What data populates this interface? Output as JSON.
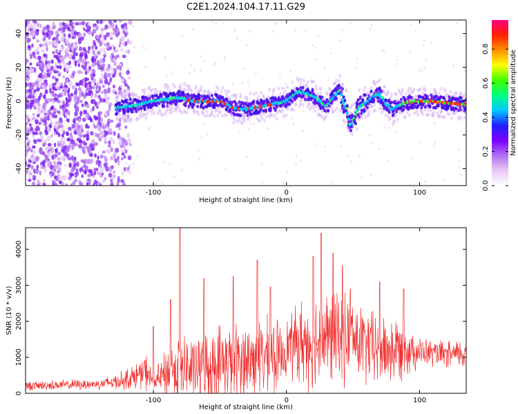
{
  "title": "C2E1.2024.104.17.11.G29",
  "chart_data": [
    {
      "type": "heatmap",
      "xlabel": "Height of straight line (km)",
      "ylabel": "Frequency (Hz)",
      "xlim": [
        -196,
        135
      ],
      "ylim": [
        -50,
        48
      ],
      "x_ticks": [
        -100,
        0,
        100
      ],
      "y_ticks": [
        -40,
        -20,
        0,
        20,
        40
      ],
      "grid": false,
      "colorbar": {
        "label": "Normalized spectral amplitude",
        "range": [
          0.0,
          0.97
        ],
        "ticks": [
          0.0,
          0.2,
          0.4,
          0.6,
          0.8
        ],
        "colormap": [
          "#ffffff",
          "#e8c8f5",
          "#b070f0",
          "#7a00ff",
          "#2020ff",
          "#00c8ff",
          "#00ff80",
          "#40ff00",
          "#ffff00",
          "#ff9000",
          "#ff2000",
          "#ff0080"
        ]
      },
      "ridge": {
        "x": [
          -128,
          -120,
          -110,
          -100,
          -90,
          -80,
          -70,
          -60,
          -50,
          -40,
          -30,
          -20,
          -10,
          0,
          10,
          20,
          30,
          35,
          40,
          45,
          48,
          52,
          55,
          60,
          65,
          70,
          75,
          80,
          85,
          90,
          100,
          110,
          120,
          135
        ],
        "freq": [
          -4,
          -3,
          -2,
          0,
          1,
          2,
          0,
          0,
          0,
          -4,
          -5,
          -3,
          -2,
          0,
          6,
          3,
          -3,
          2,
          6,
          -5,
          -15,
          -8,
          -3,
          -1,
          3,
          4,
          -2,
          -5,
          -2,
          -1,
          0,
          0,
          -1,
          -2
        ]
      },
      "noise_region_x": [
        -196,
        -125
      ]
    },
    {
      "type": "line",
      "xlabel": "Height of straight line (km)",
      "ylabel": "SNR (10 * v/v)",
      "xlim": [
        -196,
        135
      ],
      "ylim": [
        0,
        4600
      ],
      "x_ticks": [
        -100,
        0,
        100
      ],
      "y_ticks": [
        0,
        1000,
        2000,
        3000,
        4000
      ],
      "grid": false,
      "line_color": "#f03030",
      "series": [
        {
          "x": [
            -196,
            -180,
            -160,
            -140,
            -125,
            -115,
            -105,
            -100,
            -90,
            -80,
            -70,
            -60,
            -50,
            -40,
            -30,
            -20,
            -10,
            -5,
            0,
            10,
            20,
            30,
            40,
            50,
            60,
            70,
            80,
            90,
            100,
            110,
            120,
            135
          ],
          "base": [
            200,
            220,
            240,
            260,
            350,
            450,
            600,
            300,
            550,
            700,
            650,
            700,
            850,
            900,
            900,
            950,
            1000,
            1050,
            1300,
            1400,
            1450,
            1500,
            1550,
            1500,
            1300,
            1200,
            1200,
            1250,
            1150,
            1100,
            1050,
            1100
          ],
          "spread": [
            150,
            160,
            170,
            180,
            300,
            400,
            600,
            250,
            900,
            1200,
            1100,
            1200,
            1300,
            1300,
            1300,
            1300,
            1300,
            1100,
            900,
            1400,
            1600,
            1600,
            1500,
            1400,
            1300,
            1200,
            1200,
            900,
            500,
            450,
            450,
            500
          ],
          "peak_x": [
            -100,
            -87,
            -80,
            -62,
            -40,
            -22,
            -12,
            20,
            26,
            35,
            42,
            48,
            70,
            88
          ],
          "peak_value": [
            1850,
            2600,
            4600,
            3200,
            3250,
            3700,
            2950,
            3800,
            4450,
            3900,
            3550,
            2900,
            3100,
            2900
          ]
        }
      ]
    }
  ]
}
